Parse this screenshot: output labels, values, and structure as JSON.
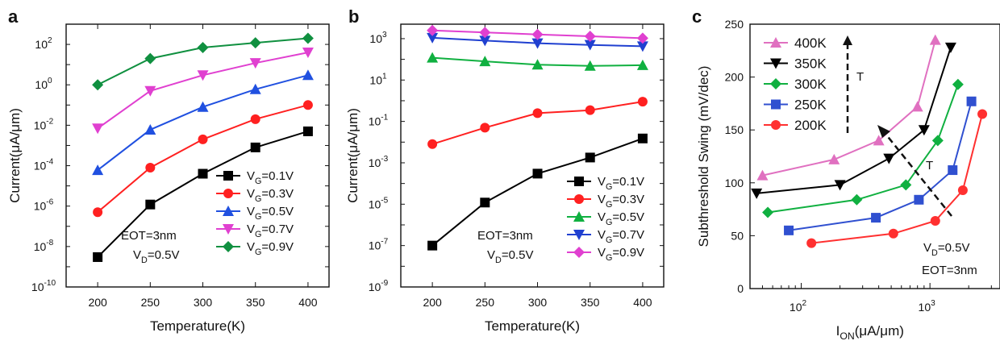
{
  "chart_data": [
    {
      "panel": "a",
      "type": "line",
      "xlabel": "Temperature(K)",
      "ylabel": "Current(μA/μm)",
      "yscale": "log",
      "ylim": [
        1e-10,
        1000
      ],
      "yticks": [
        {
          "v": 1e-10,
          "lab": "10",
          "exp": "-10"
        },
        {
          "v": 1e-08,
          "lab": "10",
          "exp": "-8"
        },
        {
          "v": 1e-06,
          "lab": "10",
          "exp": "-6"
        },
        {
          "v": 0.0001,
          "lab": "10",
          "exp": "-4"
        },
        {
          "v": 0.01,
          "lab": "10",
          "exp": "-2"
        },
        {
          "v": 1,
          "lab": "10",
          "exp": "0"
        },
        {
          "v": 100,
          "lab": "10",
          "exp": "2"
        }
      ],
      "xlim": [
        170,
        420
      ],
      "xticks": [
        200,
        250,
        300,
        350,
        400
      ],
      "x": [
        200,
        250,
        300,
        350,
        400
      ],
      "legend_position": "lower-right",
      "annotations": [
        {
          "text": "EOT=3nm"
        },
        {
          "text": "V",
          "sub": "D",
          "tail": "=0.5V"
        }
      ],
      "series": [
        {
          "name": "V",
          "sub": "G",
          "tail": "=0.1V",
          "color": "#000000",
          "marker": "square",
          "values": [
            3e-09,
            1.2e-06,
            4e-05,
            0.0008,
            0.005
          ]
        },
        {
          "name": "V",
          "sub": "G",
          "tail": "=0.3V",
          "color": "#ff2020",
          "marker": "circle",
          "values": [
            5e-07,
            8e-05,
            0.002,
            0.02,
            0.1
          ]
        },
        {
          "name": "V",
          "sub": "G",
          "tail": "=0.5V",
          "color": "#2050e0",
          "marker": "triangle-up",
          "values": [
            6e-05,
            0.006,
            0.08,
            0.6,
            3
          ]
        },
        {
          "name": "V",
          "sub": "G",
          "tail": "=0.7V",
          "color": "#e040d0",
          "marker": "triangle-down",
          "values": [
            0.007,
            0.5,
            3,
            12,
            40
          ]
        },
        {
          "name": "V",
          "sub": "G",
          "tail": "=0.9V",
          "color": "#109040",
          "marker": "diamond",
          "values": [
            1,
            20,
            70,
            120,
            200
          ]
        }
      ]
    },
    {
      "panel": "b",
      "type": "line",
      "xlabel": "Temperature(K)",
      "ylabel": "Current(μA/μm)",
      "yscale": "log",
      "ylim": [
        1e-09,
        5000
      ],
      "yticks": [
        {
          "v": 1e-09,
          "lab": "10",
          "exp": "-9"
        },
        {
          "v": 1e-07,
          "lab": "10",
          "exp": "-7"
        },
        {
          "v": 1e-05,
          "lab": "10",
          "exp": "-5"
        },
        {
          "v": 0.001,
          "lab": "10",
          "exp": "-3"
        },
        {
          "v": 0.1,
          "lab": "10",
          "exp": "-1"
        },
        {
          "v": 10,
          "lab": "10",
          "exp": "1"
        },
        {
          "v": 1000,
          "lab": "10",
          "exp": "3"
        }
      ],
      "xlim": [
        170,
        420
      ],
      "xticks": [
        200,
        250,
        300,
        350,
        400
      ],
      "x": [
        200,
        250,
        300,
        350,
        400
      ],
      "legend_position": "lower-right",
      "annotations": [
        {
          "text": "EOT=3nm"
        },
        {
          "text": "V",
          "sub": "D",
          "tail": "=0.5V"
        }
      ],
      "series": [
        {
          "name": "V",
          "sub": "G",
          "tail": "=0.1V",
          "color": "#000000",
          "marker": "square",
          "values": [
            1e-07,
            1.2e-05,
            0.0003,
            0.0018,
            0.015
          ]
        },
        {
          "name": "V",
          "sub": "G",
          "tail": "=0.3V",
          "color": "#ff2020",
          "marker": "circle",
          "values": [
            0.008,
            0.05,
            0.25,
            0.35,
            0.9
          ]
        },
        {
          "name": "V",
          "sub": "G",
          "tail": "=0.5V",
          "color": "#10b040",
          "marker": "triangle-up",
          "values": [
            120,
            80,
            55,
            48,
            52
          ]
        },
        {
          "name": "V",
          "sub": "G",
          "tail": "=0.7V",
          "color": "#2040d0",
          "marker": "triangle-down",
          "values": [
            1100,
            800,
            600,
            500,
            430
          ]
        },
        {
          "name": "V",
          "sub": "G",
          "tail": "=0.9V",
          "color": "#e040d0",
          "marker": "diamond",
          "values": [
            2500,
            2000,
            1600,
            1300,
            1050
          ]
        }
      ]
    },
    {
      "panel": "c",
      "type": "line",
      "xlabel": "I",
      "xlabel_sub": "ON",
      "xlabel_tail": "(μA/μm)",
      "ylabel": "Subthreshold Swing (mV/dec)",
      "xscale": "log",
      "xlim": [
        40,
        3500
      ],
      "xticks": [
        {
          "v": 100,
          "lab": "10",
          "exp": "2"
        },
        {
          "v": 1000,
          "lab": "10",
          "exp": "3"
        }
      ],
      "ylim": [
        0,
        250
      ],
      "yticks": [
        0,
        50,
        100,
        150,
        200,
        250
      ],
      "legend_position": "top-left",
      "annotations": [
        {
          "text": "V",
          "sub": "D",
          "tail": "=0.5V"
        },
        {
          "text": "EOT=3nm"
        },
        {
          "text": "T"
        },
        {
          "text": "T"
        }
      ],
      "series": [
        {
          "name": "400K",
          "color": "#e070c0",
          "marker": "triangle-up",
          "x": [
            50,
            180,
            400,
            800,
            1100
          ],
          "y": [
            107,
            122,
            140,
            172,
            235
          ]
        },
        {
          "name": "350K",
          "color": "#000000",
          "marker": "triangle-down",
          "x": [
            45,
            200,
            480,
            900,
            1450
          ],
          "y": [
            90,
            98,
            123,
            150,
            228
          ]
        },
        {
          "name": "300K",
          "color": "#10b040",
          "marker": "diamond",
          "x": [
            55,
            270,
            650,
            1150,
            1650
          ],
          "y": [
            72,
            84,
            98,
            140,
            193
          ]
        },
        {
          "name": "250K",
          "color": "#3050d0",
          "marker": "square",
          "x": [
            80,
            380,
            820,
            1500,
            2100
          ],
          "y": [
            55,
            67,
            84,
            112,
            177
          ]
        },
        {
          "name": "200K",
          "color": "#ff3030",
          "marker": "circle",
          "x": [
            120,
            520,
            1100,
            1800,
            2550
          ],
          "y": [
            43,
            52,
            64,
            93,
            165
          ]
        }
      ]
    }
  ]
}
